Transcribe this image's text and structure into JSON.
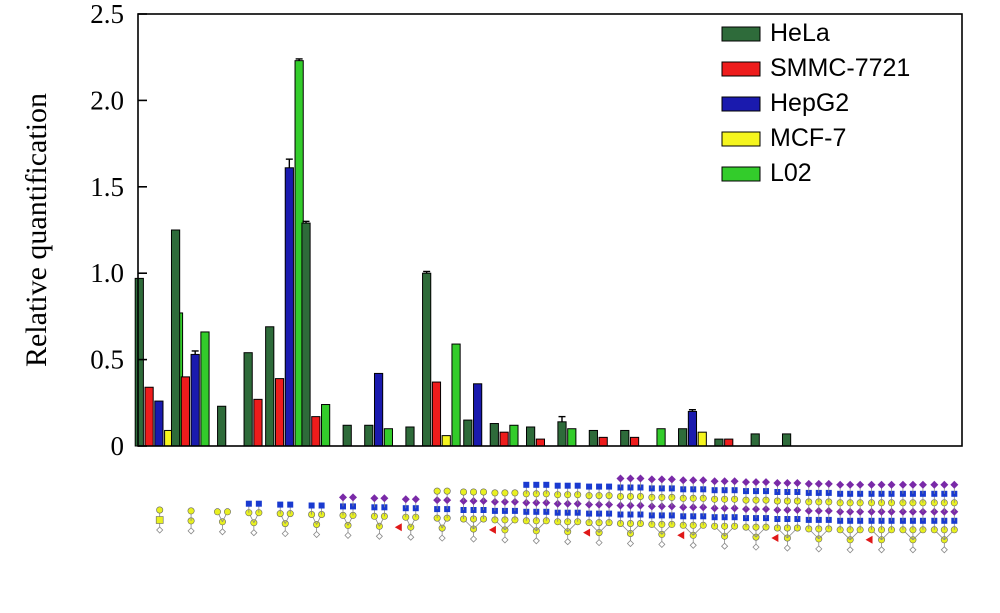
{
  "chart_data": {
    "type": "bar",
    "title": "",
    "xlabel": "",
    "ylabel": "Relative quantification",
    "ylim": [
      0,
      2.5
    ],
    "yticks": [
      {
        "value": 0,
        "label": "0"
      },
      {
        "value": 0.5,
        "label": "0.5"
      },
      {
        "value": 1.0,
        "label": "1.0"
      },
      {
        "value": 1.5,
        "label": "1.5"
      },
      {
        "value": 2.0,
        "label": "2.0"
      },
      {
        "value": 2.5,
        "label": "2.5"
      }
    ],
    "grid": false,
    "legend_position": "top-right",
    "categories": [
      "1",
      "2",
      "3",
      "4",
      "5",
      "6",
      "7",
      "8",
      "9",
      "10",
      "11",
      "12",
      "13",
      "14",
      "15",
      "16",
      "17",
      "18",
      "19",
      "20",
      "21",
      "22",
      "23",
      "24",
      "25",
      "26"
    ],
    "x_axis_note": "x-axis categories are glycan structures drawn as symbol glyphs (no printed text labels)",
    "series": [
      {
        "name": "HeLa",
        "color": "#2e6b3a",
        "values": [
          0.97,
          1.25,
          0.23,
          0.54,
          0.69,
          1.29,
          0.12,
          0.12,
          0.11,
          1.0,
          0.15,
          0.13,
          0.11,
          0.14,
          0.09,
          0.09,
          0,
          0.1,
          0.04,
          0.07,
          0.07,
          0,
          0,
          0,
          0,
          0
        ],
        "errors": [
          0,
          0,
          0,
          0,
          0,
          0.01,
          0,
          0,
          0,
          0.01,
          0,
          0,
          0,
          0.03,
          0,
          0,
          0,
          0,
          0,
          0,
          0,
          0,
          0,
          0,
          0,
          0
        ]
      },
      {
        "name": "SMMC-7721",
        "color": "#ee1c1c",
        "values": [
          0.34,
          0.4,
          0,
          0.27,
          0.39,
          0.17,
          0,
          0,
          0,
          0.37,
          0,
          0.08,
          0.04,
          0,
          0.05,
          0.05,
          0,
          0,
          0.04,
          0,
          0,
          0,
          0,
          0,
          0,
          0
        ],
        "errors": [
          0,
          0,
          0,
          0,
          0,
          0,
          0,
          0,
          0,
          0,
          0,
          0,
          0,
          0,
          0,
          0,
          0,
          0,
          0,
          0,
          0,
          0,
          0,
          0,
          0,
          0
        ]
      },
      {
        "name": "HepG2",
        "color": "#1a1aae",
        "values": [
          0.26,
          0.53,
          0,
          0,
          1.61,
          0,
          0,
          0.42,
          0,
          0,
          0.36,
          0,
          0,
          0,
          0,
          0,
          0,
          0.2,
          0,
          0,
          0,
          0,
          0,
          0,
          0,
          0
        ],
        "errors": [
          0,
          0.02,
          0,
          0,
          0.05,
          0,
          0,
          0,
          0,
          0,
          0,
          0,
          0,
          0,
          0,
          0,
          0,
          0.01,
          0,
          0,
          0,
          0,
          0,
          0,
          0,
          0
        ]
      },
      {
        "name": "MCF-7",
        "color": "#f5f51e",
        "values": [
          0.09,
          0,
          0,
          0,
          0,
          0,
          0,
          0,
          0,
          0.06,
          0,
          0,
          0,
          0,
          0,
          0,
          0,
          0.08,
          0,
          0,
          0,
          0,
          0,
          0,
          0,
          0
        ],
        "errors": [
          0,
          0,
          0,
          0,
          0,
          0,
          0,
          0,
          0,
          0,
          0,
          0,
          0,
          0,
          0,
          0,
          0,
          0,
          0,
          0,
          0,
          0,
          0,
          0,
          0,
          0
        ]
      },
      {
        "name": "L02",
        "color": "#33cc2b",
        "values": [
          0.77,
          0.66,
          0,
          0,
          2.23,
          0.24,
          0,
          0.1,
          0,
          0.59,
          0,
          0.12,
          0,
          0.1,
          0,
          0,
          0.1,
          0,
          0,
          0,
          0,
          0,
          0,
          0,
          0,
          0
        ],
        "errors": [
          0,
          0,
          0,
          0,
          0.01,
          0,
          0,
          0,
          0,
          0,
          0,
          0,
          0,
          0,
          0,
          0,
          0,
          0,
          0,
          0,
          0,
          0,
          0,
          0,
          0,
          0
        ]
      }
    ]
  }
}
